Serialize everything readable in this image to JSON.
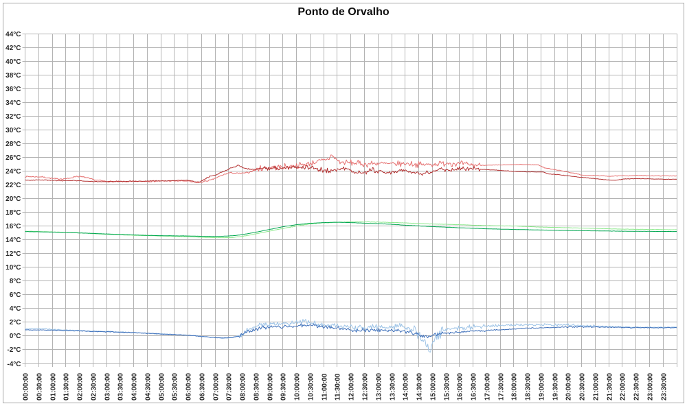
{
  "title": "Ponto de Orvalho",
  "colors": {
    "frame_border": "#a6a6a6",
    "gridline": "#b3b3b3",
    "tick_mark": "#b3b3b3",
    "axis_text": "#262626",
    "title_text": "#0d0d0d",
    "background": "#ffffff"
  },
  "chart_data": {
    "type": "line",
    "title": "Ponto de Orvalho",
    "legend": "none",
    "grid": {
      "horizontal": true,
      "vertical": true
    },
    "y_axis": {
      "min": -4,
      "max": 44,
      "step": 2,
      "unit": "°C",
      "tick_labels": [
        "44°C",
        "42°C",
        "40°C",
        "38°C",
        "36°C",
        "34°C",
        "32°C",
        "30°C",
        "28°C",
        "26°C",
        "24°C",
        "22°C",
        "20°C",
        "18°C",
        "16°C",
        "14°C",
        "12°C",
        "10°C",
        "8°C",
        "6°C",
        "4°C",
        "2°C",
        "0°C",
        "-2°C",
        "-4°C"
      ]
    },
    "x_axis": {
      "start_hour": 0,
      "end_hour": 24,
      "tick_interval_minutes": 30,
      "tick_labels": [
        "00:00:00",
        "00:30:00",
        "01:00:00",
        "01:30:00",
        "02:00:00",
        "02:30:00",
        "03:00:00",
        "03:30:00",
        "04:00:00",
        "04:30:00",
        "05:00:00",
        "05:30:00",
        "06:00:00",
        "06:30:00",
        "07:00:00",
        "07:30:00",
        "08:00:00",
        "08:30:00",
        "09:00:00",
        "09:30:00",
        "10:00:00",
        "10:30:00",
        "11:00:00",
        "11:30:00",
        "12:00:00",
        "12:30:00",
        "13:00:00",
        "13:30:00",
        "14:00:00",
        "14:30:00",
        "15:00:00",
        "15:30:00",
        "16:00:00",
        "16:30:00",
        "17:00:00",
        "17:30:00",
        "18:00:00",
        "18:30:00",
        "19:00:00",
        "19:30:00",
        "20:00:00",
        "20:30:00",
        "21:00:00",
        "21:30:00",
        "22:00:00",
        "22:30:00",
        "23:00:00",
        "23:30:00"
      ]
    },
    "series": [
      {
        "name": "red-light",
        "color": "#e57070",
        "width": 1,
        "points": [
          [
            0,
            23.2
          ],
          [
            0.6,
            23.15
          ],
          [
            1.15,
            22.85
          ],
          [
            1.6,
            22.9
          ],
          [
            1.9,
            23.25
          ],
          [
            2.2,
            23.1
          ],
          [
            2.5,
            22.75
          ],
          [
            3.0,
            22.5
          ],
          [
            3.6,
            22.45
          ],
          [
            4.3,
            22.5
          ],
          [
            5.2,
            22.55
          ],
          [
            5.9,
            22.55
          ],
          [
            6.4,
            22.3
          ],
          [
            6.9,
            22.75
          ],
          [
            7.2,
            23.3
          ],
          [
            7.5,
            23.75
          ],
          [
            7.9,
            23.65
          ],
          [
            8.2,
            23.75
          ],
          [
            8.6,
            24.35
          ],
          [
            9.0,
            24.5
          ],
          [
            9.6,
            24.65
          ],
          [
            10.1,
            24.85
          ],
          [
            10.6,
            25.2
          ],
          [
            11.0,
            25.6
          ],
          [
            11.2,
            25.8
          ],
          [
            11.27,
            26.35
          ],
          [
            11.4,
            25.9
          ],
          [
            11.6,
            25.3
          ],
          [
            12.0,
            25.2
          ],
          [
            12.5,
            25.0
          ],
          [
            13.0,
            25.15
          ],
          [
            13.6,
            25.0
          ],
          [
            14.1,
            25.1
          ],
          [
            14.6,
            24.9
          ],
          [
            15.1,
            25.0
          ],
          [
            15.6,
            25.2
          ],
          [
            16.1,
            25.0
          ],
          [
            16.75,
            24.85
          ],
          [
            17.2,
            24.85
          ],
          [
            17.7,
            24.9
          ],
          [
            18.3,
            24.95
          ],
          [
            18.9,
            24.9
          ],
          [
            19.15,
            24.45
          ],
          [
            19.6,
            24.15
          ],
          [
            20.0,
            23.85
          ],
          [
            20.6,
            23.35
          ],
          [
            21.0,
            23.35
          ],
          [
            21.5,
            23.25
          ],
          [
            22.0,
            23.3
          ],
          [
            22.6,
            23.35
          ],
          [
            23.2,
            23.3
          ],
          [
            24,
            23.3
          ]
        ],
        "noise": [
          [
            0,
            6.4,
            0.07
          ],
          [
            6.4,
            8.5,
            0.07
          ],
          [
            8.5,
            16.75,
            0.3
          ],
          [
            16.75,
            24,
            0.03
          ]
        ]
      },
      {
        "name": "red-dark",
        "color": "#b43232",
        "width": 1,
        "points": [
          [
            0,
            22.7
          ],
          [
            0.8,
            22.68
          ],
          [
            1.3,
            22.6
          ],
          [
            1.8,
            22.62
          ],
          [
            2.4,
            22.5
          ],
          [
            3.1,
            22.45
          ],
          [
            3.8,
            22.5
          ],
          [
            4.6,
            22.55
          ],
          [
            5.4,
            22.6
          ],
          [
            6.0,
            22.65
          ],
          [
            6.4,
            22.35
          ],
          [
            6.8,
            23.2
          ],
          [
            7.1,
            23.55
          ],
          [
            7.45,
            24.2
          ],
          [
            7.85,
            24.85
          ],
          [
            8.15,
            24.35
          ],
          [
            8.4,
            24.25
          ],
          [
            8.8,
            24.4
          ],
          [
            9.3,
            24.45
          ],
          [
            9.9,
            24.55
          ],
          [
            10.5,
            24.5
          ],
          [
            10.9,
            24.2
          ],
          [
            11.2,
            24.05
          ],
          [
            11.55,
            24.35
          ],
          [
            11.85,
            24.4
          ],
          [
            12.15,
            23.8
          ],
          [
            12.45,
            23.7
          ],
          [
            12.8,
            24.15
          ],
          [
            13.1,
            23.75
          ],
          [
            13.5,
            23.9
          ],
          [
            13.9,
            24.25
          ],
          [
            14.25,
            23.8
          ],
          [
            14.6,
            23.6
          ],
          [
            15.0,
            23.9
          ],
          [
            15.35,
            24.3
          ],
          [
            15.7,
            24.1
          ],
          [
            16.05,
            24.3
          ],
          [
            16.45,
            24.4
          ],
          [
            16.75,
            24.25
          ],
          [
            17.3,
            24.15
          ],
          [
            17.8,
            24.0
          ],
          [
            18.4,
            23.9
          ],
          [
            19.1,
            23.85
          ],
          [
            19.25,
            23.6
          ],
          [
            19.7,
            23.45
          ],
          [
            20.1,
            23.25
          ],
          [
            20.6,
            23.05
          ],
          [
            21.1,
            22.85
          ],
          [
            21.5,
            22.7
          ],
          [
            21.75,
            22.65
          ],
          [
            22.1,
            22.85
          ],
          [
            22.5,
            22.9
          ],
          [
            23.1,
            22.85
          ],
          [
            23.6,
            22.8
          ],
          [
            24,
            22.8
          ]
        ],
        "noise": [
          [
            0,
            6.4,
            0.04
          ],
          [
            6.4,
            8.5,
            0.06
          ],
          [
            8.5,
            16.75,
            0.22
          ],
          [
            16.75,
            24,
            0.025
          ]
        ]
      },
      {
        "name": "green-light",
        "color": "#8ce98c",
        "width": 1,
        "points": [
          [
            0,
            15.25
          ],
          [
            1,
            15.15
          ],
          [
            2,
            15.0
          ],
          [
            3,
            14.8
          ],
          [
            4,
            14.65
          ],
          [
            5,
            14.55
          ],
          [
            6,
            14.45
          ],
          [
            6.6,
            14.35
          ],
          [
            7.1,
            14.3
          ],
          [
            7.6,
            14.32
          ],
          [
            8,
            14.5
          ],
          [
            8.5,
            14.85
          ],
          [
            9,
            15.25
          ],
          [
            9.5,
            15.65
          ],
          [
            10,
            16.0
          ],
          [
            10.5,
            16.3
          ],
          [
            11,
            16.45
          ],
          [
            11.5,
            16.55
          ],
          [
            12,
            16.6
          ],
          [
            12.7,
            16.6
          ],
          [
            13.2,
            16.55
          ],
          [
            14,
            16.45
          ],
          [
            15,
            16.3
          ],
          [
            16,
            16.2
          ],
          [
            17,
            16.05
          ],
          [
            18,
            16.0
          ],
          [
            19,
            15.85
          ],
          [
            20,
            15.75
          ],
          [
            21,
            15.65
          ],
          [
            22,
            15.55
          ],
          [
            23,
            15.5
          ],
          [
            24,
            15.45
          ]
        ],
        "noise": [
          [
            0,
            24,
            0.015
          ],
          [
            9.5,
            13.5,
            0.035
          ]
        ]
      },
      {
        "name": "green-dark",
        "color": "#00a651",
        "width": 1,
        "points": [
          [
            0,
            15.2
          ],
          [
            1,
            15.12
          ],
          [
            2,
            15.0
          ],
          [
            3,
            14.85
          ],
          [
            4,
            14.7
          ],
          [
            5,
            14.6
          ],
          [
            6,
            14.55
          ],
          [
            6.6,
            14.5
          ],
          [
            7.2,
            14.5
          ],
          [
            7.7,
            14.6
          ],
          [
            8,
            14.75
          ],
          [
            8.5,
            15.1
          ],
          [
            9,
            15.5
          ],
          [
            9.5,
            15.9
          ],
          [
            10,
            16.2
          ],
          [
            10.5,
            16.4
          ],
          [
            11,
            16.5
          ],
          [
            11.5,
            16.55
          ],
          [
            12,
            16.5
          ],
          [
            12.5,
            16.42
          ],
          [
            13,
            16.35
          ],
          [
            13.5,
            16.25
          ],
          [
            14,
            16.12
          ],
          [
            15,
            15.92
          ],
          [
            16,
            15.75
          ],
          [
            17,
            15.6
          ],
          [
            18,
            15.5
          ],
          [
            19,
            15.42
          ],
          [
            20,
            15.35
          ],
          [
            21,
            15.3
          ],
          [
            22,
            15.25
          ],
          [
            23,
            15.22
          ],
          [
            24,
            15.2
          ]
        ],
        "noise": [
          [
            0,
            24,
            0.012
          ]
        ]
      },
      {
        "name": "blue-light",
        "color": "#9dc3e6",
        "width": 1,
        "points": [
          [
            0,
            1.05
          ],
          [
            0.5,
            1.1
          ],
          [
            1,
            0.95
          ],
          [
            2,
            0.8
          ],
          [
            3,
            0.65
          ],
          [
            4,
            0.5
          ],
          [
            5,
            0.3
          ],
          [
            6,
            0.1
          ],
          [
            6.6,
            -0.1
          ],
          [
            7.1,
            -0.3
          ],
          [
            7.6,
            -0.25
          ],
          [
            7.9,
            0.1
          ],
          [
            8.3,
            1.1
          ],
          [
            8.7,
            1.7
          ],
          [
            9.2,
            1.8
          ],
          [
            9.7,
            1.75
          ],
          [
            10.2,
            2.0
          ],
          [
            10.4,
            2.05
          ],
          [
            10.8,
            1.7
          ],
          [
            11.2,
            1.65
          ],
          [
            11.7,
            1.35
          ],
          [
            12.1,
            1.2
          ],
          [
            12.6,
            1.3
          ],
          [
            13.0,
            1.25
          ],
          [
            13.4,
            1.2
          ],
          [
            13.8,
            1.4
          ],
          [
            14.2,
            1.1
          ],
          [
            14.45,
            0.5
          ],
          [
            14.6,
            -0.7
          ],
          [
            14.7,
            -0.2
          ],
          [
            14.8,
            -1.6
          ],
          [
            14.9,
            -2.4
          ],
          [
            15.0,
            -0.9
          ],
          [
            15.15,
            -0.3
          ],
          [
            15.4,
            0.8
          ],
          [
            15.7,
            1.1
          ],
          [
            16.2,
            1.25
          ],
          [
            16.8,
            1.35
          ],
          [
            17.4,
            1.5
          ],
          [
            18,
            1.6
          ],
          [
            19,
            1.65
          ],
          [
            20,
            1.6
          ],
          [
            20.6,
            1.5
          ],
          [
            21.2,
            1.4
          ],
          [
            22,
            1.3
          ],
          [
            23,
            1.25
          ],
          [
            24,
            1.3
          ]
        ],
        "noise": [
          [
            0,
            7.9,
            0.05
          ],
          [
            7.9,
            14.2,
            0.28
          ],
          [
            14.2,
            15.4,
            0.45
          ],
          [
            15.4,
            17,
            0.22
          ],
          [
            17,
            21,
            0.12
          ],
          [
            21,
            24,
            0.05
          ]
        ]
      },
      {
        "name": "blue-dark",
        "color": "#3d6fba",
        "width": 1,
        "points": [
          [
            0,
            0.9
          ],
          [
            1,
            0.85
          ],
          [
            2,
            0.75
          ],
          [
            3,
            0.6
          ],
          [
            4,
            0.5
          ],
          [
            5,
            0.3
          ],
          [
            6,
            0.1
          ],
          [
            6.6,
            -0.1
          ],
          [
            7.1,
            -0.28
          ],
          [
            7.6,
            -0.25
          ],
          [
            7.9,
            0.0
          ],
          [
            8.3,
            0.75
          ],
          [
            8.7,
            1.2
          ],
          [
            9.2,
            1.35
          ],
          [
            9.7,
            1.3
          ],
          [
            10.2,
            1.55
          ],
          [
            10.5,
            1.6
          ],
          [
            10.9,
            1.3
          ],
          [
            11.3,
            1.25
          ],
          [
            11.8,
            0.95
          ],
          [
            12.2,
            0.8
          ],
          [
            12.7,
            0.9
          ],
          [
            13.2,
            0.85
          ],
          [
            13.7,
            0.75
          ],
          [
            14.1,
            0.6
          ],
          [
            14.5,
            0.25
          ],
          [
            14.8,
            -0.1
          ],
          [
            15.1,
            0.15
          ],
          [
            15.4,
            0.35
          ],
          [
            15.8,
            0.5
          ],
          [
            16.3,
            0.65
          ],
          [
            17,
            0.8
          ],
          [
            17.7,
            0.95
          ],
          [
            18.4,
            1.1
          ],
          [
            19.1,
            1.2
          ],
          [
            19.8,
            1.28
          ],
          [
            20.5,
            1.32
          ],
          [
            21.2,
            1.3
          ],
          [
            22,
            1.25
          ],
          [
            23,
            1.2
          ],
          [
            24,
            1.2
          ]
        ],
        "noise": [
          [
            0,
            7.9,
            0.04
          ],
          [
            7.9,
            15.4,
            0.18
          ],
          [
            15.4,
            17,
            0.1
          ],
          [
            17,
            24,
            0.05
          ]
        ]
      }
    ]
  }
}
